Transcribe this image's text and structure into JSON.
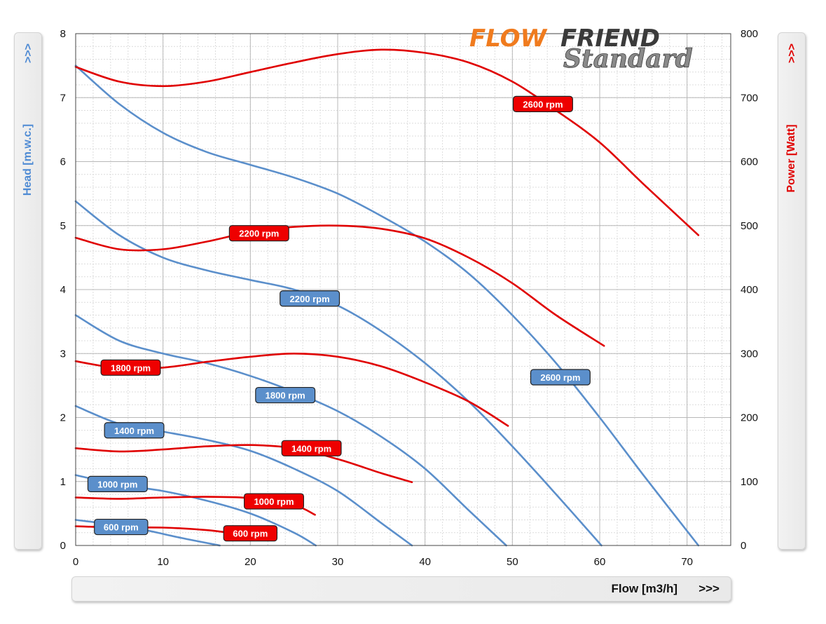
{
  "left_panel": {
    "title": "Head [m.w.c.]",
    "arrows": ">>>"
  },
  "right_panel": {
    "title": "Power  [Watt]",
    "arrows": ">>>"
  },
  "bottom_panel": {
    "title": "Flow [m3/h]",
    "arrows": ">>>"
  },
  "logo": {
    "line1_a": "FLOW",
    "line1_b": "FRIEND",
    "line2": "Standard"
  },
  "colors": {
    "head": "#5b8fcb",
    "power": "#e00000",
    "head_label_bg": "#5b8fcb",
    "power_label_bg": "#ee0000",
    "grid": "#b8b8b8"
  },
  "chart_data": {
    "type": "line",
    "title": "",
    "xlabel": "Flow [m3/h]",
    "ylabel": "Head [m.w.c.]",
    "y2label": "Power  [Watt]",
    "xlim": [
      0,
      75
    ],
    "ylim": [
      0,
      8
    ],
    "y2lim": [
      0,
      800
    ],
    "x_ticks": [
      0,
      10,
      20,
      30,
      40,
      50,
      60,
      70
    ],
    "y_ticks": [
      0,
      1,
      2,
      3,
      4,
      5,
      6,
      7,
      8
    ],
    "y2_ticks": [
      0,
      100,
      200,
      300,
      400,
      500,
      600,
      700,
      800
    ],
    "grid": true,
    "head_series": [
      {
        "name": "600 rpm",
        "label_at": [
          5.2,
          0.29
        ],
        "x": [
          0,
          4,
          8,
          12,
          16.5
        ],
        "y": [
          0.4,
          0.33,
          0.24,
          0.12,
          0
        ]
      },
      {
        "name": "1000 rpm",
        "label_at": [
          4.8,
          0.96
        ],
        "x": [
          0,
          5,
          10,
          15,
          20,
          25,
          27.5
        ],
        "y": [
          1.1,
          0.95,
          0.85,
          0.7,
          0.5,
          0.2,
          0
        ]
      },
      {
        "name": "1400 rpm",
        "label_at": [
          6.7,
          1.8
        ],
        "x": [
          0,
          5,
          10,
          15,
          20,
          25,
          30,
          35,
          38.5
        ],
        "y": [
          2.18,
          1.9,
          1.78,
          1.65,
          1.48,
          1.2,
          0.85,
          0.35,
          0
        ]
      },
      {
        "name": "1800 rpm",
        "label_at": [
          24,
          2.35
        ],
        "x": [
          0,
          5,
          10,
          15,
          20,
          25,
          30,
          35,
          40,
          45,
          49.3
        ],
        "y": [
          3.6,
          3.2,
          3.0,
          2.85,
          2.65,
          2.4,
          2.1,
          1.7,
          1.2,
          0.55,
          0
        ]
      },
      {
        "name": "2200 rpm",
        "label_at": [
          26.8,
          3.86
        ],
        "x": [
          0,
          5,
          10,
          15,
          20,
          25,
          30,
          35,
          40,
          45,
          50,
          55,
          60.2
        ],
        "y": [
          5.38,
          4.85,
          4.5,
          4.3,
          4.15,
          4.0,
          3.75,
          3.35,
          2.85,
          2.25,
          1.55,
          0.8,
          0
        ]
      },
      {
        "name": "2600 rpm",
        "label_at": [
          55.5,
          2.63
        ],
        "x": [
          0,
          5,
          10,
          15,
          20,
          25,
          30,
          35,
          40,
          45,
          50,
          55,
          60,
          65,
          71.3
        ],
        "y": [
          7.5,
          6.9,
          6.45,
          6.15,
          5.95,
          5.75,
          5.5,
          5.15,
          4.75,
          4.25,
          3.6,
          2.85,
          2.0,
          1.1,
          0
        ]
      }
    ],
    "power_series": [
      {
        "name": "600 rpm",
        "label_at": [
          20,
          19
        ],
        "x": [
          0,
          5,
          10,
          15,
          18
        ],
        "y": [
          30,
          28,
          28,
          24,
          19
        ]
      },
      {
        "name": "1000 rpm",
        "label_at": [
          22.7,
          69
        ],
        "x": [
          0,
          5,
          10,
          15,
          20,
          25,
          27.4
        ],
        "y": [
          75,
          73,
          75,
          76,
          74,
          63,
          48
        ]
      },
      {
        "name": "1400 rpm",
        "label_at": [
          27,
          152
        ],
        "x": [
          0,
          5,
          10,
          15,
          20,
          25,
          30,
          35,
          38.5
        ],
        "y": [
          152,
          147,
          150,
          155,
          157,
          152,
          135,
          113,
          99
        ]
      },
      {
        "name": "1800 rpm",
        "label_at": [
          6.3,
          278
        ],
        "x": [
          0,
          5,
          10,
          15,
          20,
          25,
          30,
          35,
          40,
          45,
          49.5
        ],
        "y": [
          288,
          277,
          278,
          287,
          295,
          300,
          295,
          280,
          255,
          225,
          187
        ]
      },
      {
        "name": "2200 rpm",
        "label_at": [
          21,
          488
        ],
        "x": [
          0,
          5,
          10,
          15,
          20,
          25,
          30,
          35,
          40,
          45,
          50,
          55,
          60.5
        ],
        "y": [
          481,
          463,
          463,
          475,
          490,
          498,
          500,
          495,
          480,
          450,
          410,
          360,
          312
        ]
      },
      {
        "name": "2600 rpm",
        "label_at": [
          53.5,
          690
        ],
        "x": [
          0,
          5,
          10,
          15,
          20,
          25,
          30,
          35,
          40,
          45,
          50,
          55,
          60,
          65,
          71.3
        ],
        "y": [
          748,
          725,
          718,
          725,
          740,
          755,
          768,
          775,
          770,
          755,
          725,
          680,
          630,
          565,
          485
        ]
      }
    ]
  }
}
